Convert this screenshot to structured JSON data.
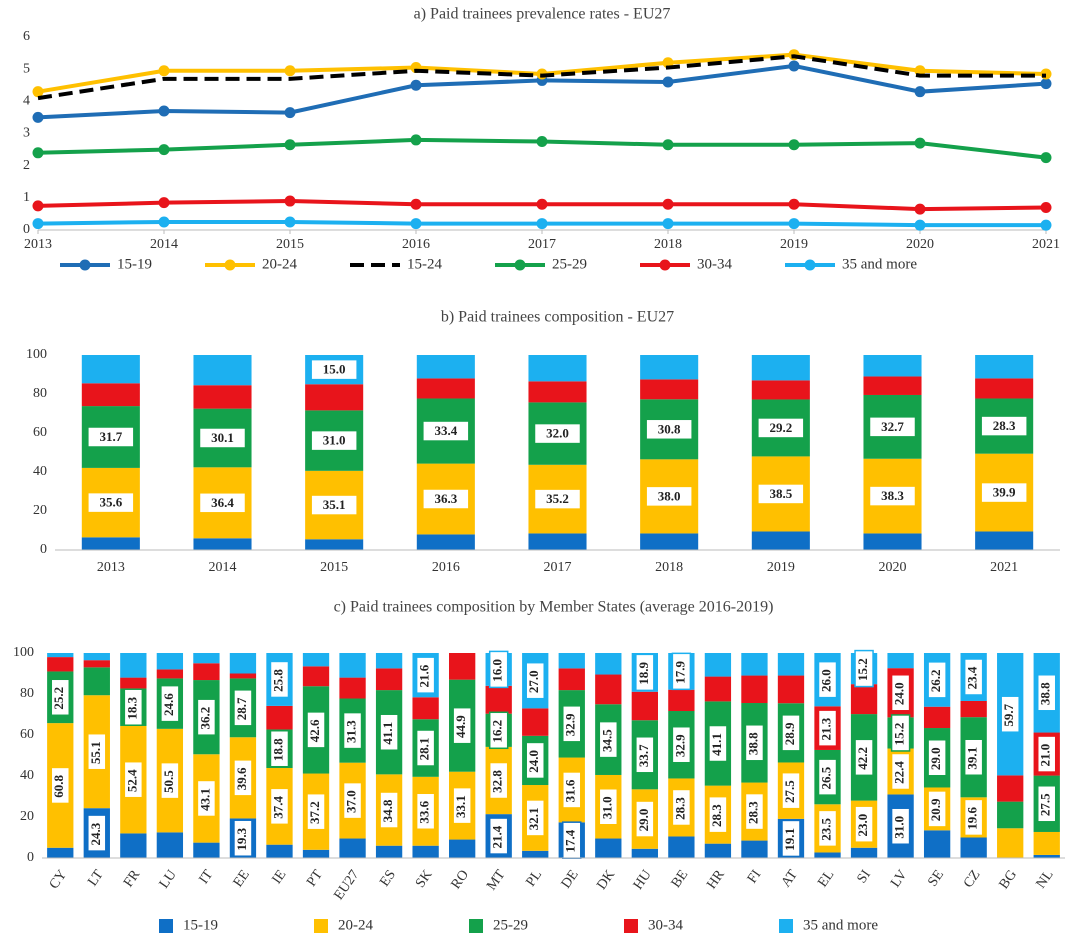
{
  "chart_data": [
    {
      "type": "line",
      "title": "a) Paid trainees prevalence rates - EU27",
      "x": [
        2013,
        2014,
        2015,
        2016,
        2017,
        2018,
        2019,
        2020,
        2021
      ],
      "xlim": [
        2013,
        2021
      ],
      "xticks": [
        2013,
        2014,
        2015,
        2016,
        2017,
        2018,
        2019,
        2020,
        2021
      ],
      "ylim": [
        0,
        6
      ],
      "yticks": [
        0,
        1,
        2,
        3,
        4,
        5,
        6
      ],
      "grid": false,
      "series": [
        {
          "name": "15-19",
          "color": "#1f6db5",
          "line_style": "solid",
          "markers": true,
          "values": [
            3.5,
            3.7,
            3.65,
            4.5,
            4.65,
            4.6,
            5.1,
            4.3,
            4.55
          ]
        },
        {
          "name": "20-24",
          "color": "#ffc000",
          "line_style": "solid",
          "markers": true,
          "values": [
            4.3,
            4.95,
            4.95,
            5.05,
            4.85,
            5.2,
            5.45,
            4.95,
            4.85
          ]
        },
        {
          "name": "15-24",
          "color": "#000000",
          "line_style": "dashed",
          "markers": false,
          "values": [
            4.1,
            4.7,
            4.7,
            4.95,
            4.8,
            5.05,
            5.4,
            4.8,
            4.8
          ]
        },
        {
          "name": "25-29",
          "color": "#14a14b",
          "line_style": "solid",
          "markers": true,
          "values": [
            2.4,
            2.5,
            2.65,
            2.8,
            2.75,
            2.65,
            2.65,
            2.7,
            2.25
          ]
        },
        {
          "name": "30-34",
          "color": "#e8141b",
          "line_style": "solid",
          "markers": true,
          "values": [
            0.75,
            0.85,
            0.9,
            0.8,
            0.8,
            0.8,
            0.8,
            0.65,
            0.7
          ]
        },
        {
          "name": "35 and more",
          "color": "#1cb0f0",
          "line_style": "solid",
          "markers": true,
          "values": [
            0.2,
            0.25,
            0.25,
            0.2,
            0.2,
            0.2,
            0.2,
            0.15,
            0.15
          ]
        }
      ],
      "legend": "bottom"
    },
    {
      "type": "bar",
      "stacked": true,
      "title": "b) Paid trainees composition - EU27",
      "categories": [
        "2013",
        "2014",
        "2015",
        "2016",
        "2017",
        "2018",
        "2019",
        "2020",
        "2021"
      ],
      "ylim": [
        0,
        100
      ],
      "yticks": [
        0,
        20,
        40,
        60,
        80,
        100
      ],
      "grid": false,
      "label_rotation": 0,
      "series": [
        {
          "name": "15-19",
          "color": "#0f6fc6",
          "values": [
            6.5,
            6,
            5.5,
            8,
            8.5,
            8.5,
            9.5,
            8.5,
            9.5
          ],
          "value_labels": [
            null,
            null,
            null,
            null,
            null,
            null,
            null,
            null,
            null
          ]
        },
        {
          "name": "20-24",
          "color": "#ffc000",
          "values": [
            35.6,
            36.4,
            35.1,
            36.3,
            35.2,
            38.0,
            38.5,
            38.3,
            39.9
          ],
          "value_labels": [
            "35.6",
            "36.4",
            "35.1",
            "36.3",
            "35.2",
            "38.0",
            "38.5",
            "38.3",
            "39.9"
          ]
        },
        {
          "name": "25-29",
          "color": "#14a14b",
          "values": [
            31.7,
            30.1,
            31.0,
            33.4,
            32.0,
            30.8,
            29.2,
            32.7,
            28.3
          ],
          "value_labels": [
            "31.7",
            "30.1",
            "31.0",
            "33.4",
            "32.0",
            "30.8",
            "29.2",
            "32.7",
            "28.3"
          ]
        },
        {
          "name": "30-34",
          "color": "#e8141b",
          "values": [
            11.7,
            12,
            13.4,
            10.3,
            10.8,
            10.2,
            9.8,
            9.5,
            10.3
          ],
          "value_labels": [
            null,
            null,
            null,
            null,
            null,
            null,
            null,
            null,
            null
          ]
        },
        {
          "name": "35 and more",
          "color": "#1cb0f0",
          "values": [
            14.5,
            15.5,
            15.0,
            12,
            13.5,
            12.5,
            13,
            11,
            12
          ],
          "value_labels": [
            null,
            null,
            "15.0",
            null,
            null,
            null,
            null,
            null,
            null
          ]
        }
      ]
    },
    {
      "type": "bar",
      "stacked": true,
      "title": "c) Paid trainees composition by Member States  (average 2016-2019)",
      "categories": [
        "CY",
        "LT",
        "FR",
        "LU",
        "IT",
        "EE",
        "IE",
        "PT",
        "EU27",
        "ES",
        "SK",
        "RO",
        "MT",
        "PL",
        "DE",
        "DK",
        "HU",
        "BE",
        "HR",
        "FI",
        "AT",
        "EL",
        "SI",
        "LV",
        "SE",
        "CZ",
        "BG",
        "NL"
      ],
      "ylim": [
        0,
        100
      ],
      "yticks": [
        0,
        20,
        40,
        60,
        80,
        100
      ],
      "grid": false,
      "label_rotation": -90,
      "legend": "bottom",
      "series": [
        {
          "name": "15-19",
          "color": "#0f6fc6",
          "values": [
            5,
            24.3,
            12,
            12.5,
            7.5,
            19.3,
            6.5,
            4,
            9.5,
            6,
            6,
            9,
            21.4,
            3.5,
            17.4,
            9.5,
            4.5,
            10.5,
            7,
            8.5,
            19.1,
            2.7,
            5,
            31.0,
            13.5,
            10,
            0,
            1.5
          ],
          "value_labels": [
            null,
            "24.3",
            null,
            null,
            null,
            "19.3",
            null,
            null,
            null,
            null,
            null,
            null,
            "21.4",
            null,
            "17.4",
            null,
            null,
            null,
            null,
            null,
            "19.1",
            null,
            null,
            "31.0",
            null,
            null,
            null,
            null
          ]
        },
        {
          "name": "20-24",
          "color": "#ffc000",
          "values": [
            60.8,
            55.1,
            52.4,
            50.5,
            43.1,
            39.6,
            37.4,
            37.2,
            37.0,
            34.8,
            33.6,
            33.1,
            32.8,
            32.1,
            31.6,
            31.0,
            29.0,
            28.3,
            28.3,
            28.3,
            27.5,
            23.5,
            23.0,
            22.4,
            20.9,
            19.6,
            14.5,
            11.2
          ],
          "value_labels": [
            "60.8",
            "55.1",
            "52.4",
            "50.5",
            "43.1",
            "39.6",
            "37.4",
            "37.2",
            "37.0",
            "34.8",
            "33.6",
            "33.1",
            "32.8",
            "32.1",
            "31.6",
            "31.0",
            "29.0",
            "28.3",
            "28.3",
            "28.3",
            "27.5",
            "23.5",
            "23.0",
            "22.4",
            "20.9",
            "19.6",
            null,
            null
          ]
        },
        {
          "name": "25-29",
          "color": "#14a14b",
          "values": [
            25.2,
            13.6,
            18.3,
            24.6,
            36.2,
            28.7,
            18.8,
            42.6,
            31.3,
            41.1,
            28.1,
            44.9,
            16.2,
            24.0,
            32.9,
            34.5,
            33.7,
            32.9,
            41.1,
            38.8,
            28.9,
            26.5,
            42.2,
            15.2,
            29.0,
            39.1,
            13,
            27.5
          ],
          "value_labels": [
            "25.2",
            null,
            "18.3",
            "24.6",
            "36.2",
            "28.7",
            "18.8",
            "42.6",
            "31.3",
            "41.1",
            "28.1",
            "44.9",
            "16.2",
            "24.0",
            "32.9",
            "34.5",
            "33.7",
            "32.9",
            "41.1",
            "38.8",
            "28.9",
            "26.5",
            "42.2",
            "15.2",
            "29.0",
            "39.1",
            null,
            "27.5"
          ]
        },
        {
          "name": "30-34",
          "color": "#e8141b",
          "values": [
            7,
            3.5,
            5.3,
            4.4,
            8.2,
            2.4,
            11.5,
            9.7,
            10.2,
            10.6,
            10.7,
            13,
            13.6,
            13.4,
            10.6,
            14.5,
            13.9,
            10.4,
            12.1,
            13.4,
            13.5,
            21.3,
            14.6,
            24.0,
            10.4,
            7.9,
            12.8,
            21.0
          ],
          "value_labels": [
            null,
            null,
            null,
            null,
            null,
            null,
            null,
            null,
            null,
            null,
            null,
            null,
            null,
            null,
            null,
            null,
            null,
            null,
            null,
            null,
            null,
            "21.3",
            null,
            "24.0",
            null,
            null,
            null,
            "21.0"
          ]
        },
        {
          "name": "35 and more",
          "color": "#1cb0f0",
          "values": [
            2,
            3.5,
            12,
            8,
            5,
            10,
            25.8,
            6.5,
            12,
            7.5,
            21.6,
            0,
            16.0,
            27.0,
            7.5,
            10.5,
            18.9,
            17.9,
            11.5,
            11,
            11,
            26.0,
            15.2,
            7.4,
            26.2,
            23.4,
            59.7,
            38.8
          ],
          "value_labels": [
            null,
            null,
            null,
            null,
            null,
            null,
            "25.8",
            null,
            null,
            null,
            "21.6",
            null,
            "16.0",
            "27.0",
            null,
            null,
            "18.9",
            "17.9",
            null,
            null,
            null,
            "26.0",
            "15.2",
            null,
            "26.2",
            "23.4",
            "59.7",
            "38.8"
          ]
        }
      ]
    }
  ]
}
